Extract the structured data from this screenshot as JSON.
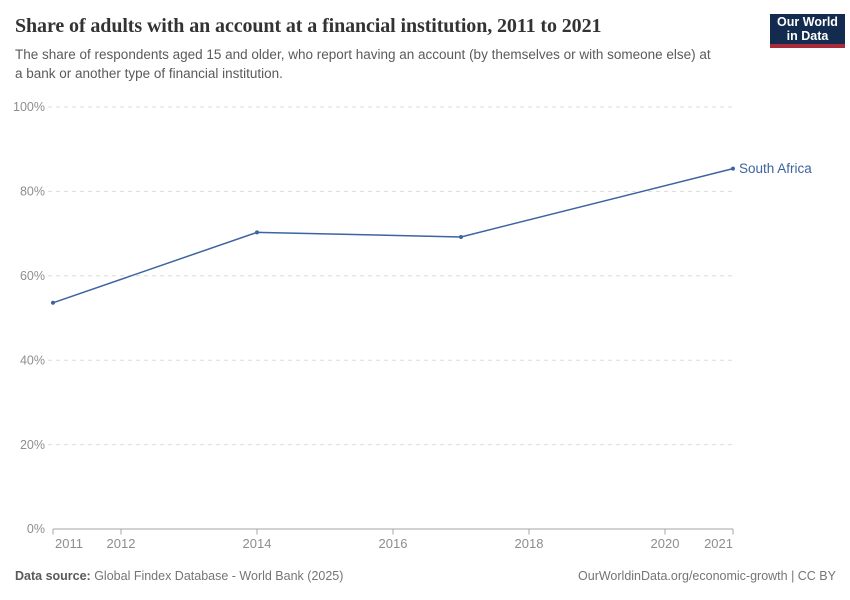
{
  "header": {
    "title": "Share of adults with an account at a financial institution, 2011 to 2021",
    "subtitle": "The share of respondents aged 15 and older, who report having an account (by themselves or with someone else) at a bank or another type of financial institution.",
    "logo": {
      "line1": "Our World",
      "line2": "in Data"
    }
  },
  "chart_data": {
    "type": "line",
    "title": "Share of adults with an account at a financial institution, 2011 to 2021",
    "x": [
      2011,
      2014,
      2017,
      2021
    ],
    "series": [
      {
        "name": "South Africa",
        "values": [
          53.6,
          70.3,
          69.2,
          85.4
        ]
      }
    ],
    "xlim": [
      2011,
      2021
    ],
    "ylim": [
      0,
      100
    ],
    "xticks": [
      2011,
      2012,
      2014,
      2016,
      2018,
      2020,
      2021
    ],
    "yticks": [
      0,
      20,
      40,
      60,
      80,
      100
    ],
    "ytick_suffix": "%",
    "grid": "horizontal-dashed",
    "legend_position": "label-at-line-end"
  },
  "footer": {
    "datasource_label": "Data source:",
    "datasource_value": " Global Findex Database - World Bank (2025)",
    "attribution": "OurWorldinData.org/economic-growth | CC BY"
  },
  "colors": {
    "line": "#3d649f",
    "grid": "#dcdcdc",
    "axis": "#a5a5a5",
    "tick_label": "#8e8e8e",
    "title": "#333333",
    "subtitle": "#5a5a5a",
    "footer": "#757575",
    "logo_bg": "#122b4e",
    "logo_stripe": "#a82b3c"
  }
}
